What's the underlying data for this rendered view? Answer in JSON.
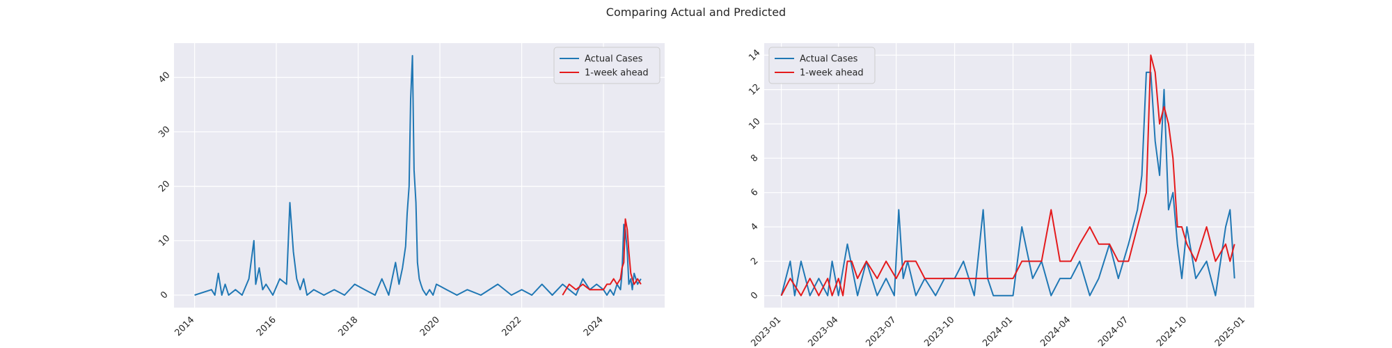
{
  "figure_title": "Comparing Actual and Predicted",
  "colors": {
    "actual": "#1f77b4",
    "predicted": "#e41a1c",
    "plot_bg": "#eaeaf2",
    "grid": "#ffffff",
    "text": "#262626"
  },
  "chart_data": [
    {
      "type": "line",
      "title": "",
      "xlabel": "",
      "ylabel": "",
      "x_kind": "date",
      "xlim": [
        "2013-07-01",
        "2025-07-01"
      ],
      "ylim": [
        -2.3,
        46.3
      ],
      "xticks": [
        "2014-01-01",
        "2016-01-01",
        "2018-01-01",
        "2020-01-01",
        "2022-01-01",
        "2024-01-01"
      ],
      "xtick_labels": [
        "2014",
        "2016",
        "2018",
        "2020",
        "2022",
        "2024"
      ],
      "yticks": [
        0,
        10,
        20,
        30,
        40
      ],
      "ytick_labels": [
        "0",
        "10",
        "20",
        "30",
        "40"
      ],
      "grid": true,
      "legend": {
        "location": "top-right",
        "entries": [
          "Actual Cases",
          "1-week ahead"
        ]
      },
      "series": [
        {
          "name": "Actual Cases",
          "color_key": "actual",
          "x": [
            "2014-01-01",
            "2014-06-01",
            "2014-07-01",
            "2014-08-01",
            "2014-09-01",
            "2014-10-01",
            "2014-11-01",
            "2015-01-01",
            "2015-03-01",
            "2015-05-01",
            "2015-06-15",
            "2015-07-01",
            "2015-08-01",
            "2015-09-01",
            "2015-10-01",
            "2015-12-01",
            "2016-02-01",
            "2016-04-01",
            "2016-05-01",
            "2016-06-01",
            "2016-07-01",
            "2016-08-01",
            "2016-09-01",
            "2016-10-01",
            "2016-12-01",
            "2017-03-01",
            "2017-06-01",
            "2017-09-01",
            "2017-12-01",
            "2018-03-01",
            "2018-06-01",
            "2018-08-01",
            "2018-10-01",
            "2018-12-01",
            "2019-01-01",
            "2019-02-01",
            "2019-03-01",
            "2019-03-15",
            "2019-04-01",
            "2019-04-15",
            "2019-05-01",
            "2019-05-15",
            "2019-06-01",
            "2019-06-15",
            "2019-07-01",
            "2019-07-15",
            "2019-08-01",
            "2019-09-01",
            "2019-10-01",
            "2019-11-01",
            "2019-12-01",
            "2020-03-01",
            "2020-06-01",
            "2020-09-01",
            "2021-01-01",
            "2021-06-01",
            "2021-10-01",
            "2022-01-01",
            "2022-04-01",
            "2022-07-01",
            "2022-10-01",
            "2023-01-01",
            "2023-03-01",
            "2023-05-01",
            "2023-07-01",
            "2023-09-01",
            "2023-11-01",
            "2024-01-01",
            "2024-02-01",
            "2024-03-01",
            "2024-04-01",
            "2024-05-01",
            "2024-06-01",
            "2024-06-15",
            "2024-07-01",
            "2024-07-15",
            "2024-08-01",
            "2024-08-15",
            "2024-09-01",
            "2024-09-15",
            "2024-10-01",
            "2024-11-01",
            "2024-12-01"
          ],
          "y": [
            0,
            1,
            0,
            4,
            0,
            2,
            0,
            1,
            0,
            3,
            10,
            2,
            5,
            1,
            2,
            0,
            3,
            2,
            17,
            8,
            3,
            1,
            3,
            0,
            1,
            0,
            1,
            0,
            2,
            1,
            0,
            3,
            0,
            6,
            2,
            5,
            9,
            15,
            20,
            36,
            44,
            23,
            17,
            6,
            3,
            2,
            1,
            0,
            1,
            0,
            2,
            1,
            0,
            1,
            0,
            2,
            0,
            1,
            0,
            2,
            0,
            2,
            1,
            0,
            3,
            1,
            2,
            1,
            0,
            1,
            0,
            2,
            1,
            4,
            13,
            12,
            8,
            2,
            3,
            1,
            4,
            2,
            3
          ]
        },
        {
          "name": "1-week ahead",
          "color_key": "predicted",
          "x": [
            "2023-01-01",
            "2023-03-01",
            "2023-05-01",
            "2023-07-01",
            "2023-09-01",
            "2023-11-01",
            "2024-01-01",
            "2024-02-01",
            "2024-03-01",
            "2024-04-01",
            "2024-05-01",
            "2024-06-01",
            "2024-06-15",
            "2024-07-01",
            "2024-07-15",
            "2024-08-01",
            "2024-08-15",
            "2024-09-01",
            "2024-09-15",
            "2024-10-01",
            "2024-11-01",
            "2024-12-01"
          ],
          "y": [
            0,
            2,
            1,
            2,
            1,
            1,
            1,
            2,
            2,
            3,
            2,
            3,
            5,
            6,
            14,
            12,
            8,
            4,
            3,
            2,
            3,
            2
          ]
        }
      ]
    },
    {
      "type": "line",
      "title": "",
      "xlabel": "",
      "ylabel": "",
      "x_kind": "date",
      "xlim": [
        "2022-12-05",
        "2025-01-15"
      ],
      "ylim": [
        -0.7,
        14.7
      ],
      "xticks": [
        "2023-01-01",
        "2023-04-01",
        "2023-07-01",
        "2023-10-01",
        "2024-01-01",
        "2024-04-01",
        "2024-07-01",
        "2024-10-01",
        "2025-01-01"
      ],
      "xtick_labels": [
        "2023-01",
        "2023-04",
        "2023-07",
        "2023-10",
        "2024-01",
        "2024-04",
        "2024-07",
        "2024-10",
        "2025-01"
      ],
      "yticks": [
        0,
        2,
        4,
        6,
        8,
        10,
        12,
        14
      ],
      "ytick_labels": [
        "0",
        "2",
        "4",
        "6",
        "8",
        "10",
        "12",
        "14"
      ],
      "grid": true,
      "legend": {
        "location": "top-left",
        "entries": [
          "Actual Cases",
          "1-week ahead"
        ]
      },
      "series": [
        {
          "name": "Actual Cases",
          "color_key": "actual",
          "x": [
            "2023-01-01",
            "2023-01-15",
            "2023-01-22",
            "2023-02-01",
            "2023-02-15",
            "2023-03-01",
            "2023-03-15",
            "2023-03-22",
            "2023-04-01",
            "2023-04-15",
            "2023-05-01",
            "2023-05-15",
            "2023-06-01",
            "2023-06-15",
            "2023-06-28",
            "2023-07-05",
            "2023-07-12",
            "2023-07-19",
            "2023-08-01",
            "2023-08-15",
            "2023-09-01",
            "2023-09-15",
            "2023-10-01",
            "2023-10-15",
            "2023-11-01",
            "2023-11-15",
            "2023-11-22",
            "2023-12-01",
            "2023-12-15",
            "2024-01-01",
            "2024-01-15",
            "2024-02-01",
            "2024-02-15",
            "2024-03-01",
            "2024-03-15",
            "2024-04-01",
            "2024-04-15",
            "2024-05-01",
            "2024-05-15",
            "2024-06-01",
            "2024-06-15",
            "2024-07-01",
            "2024-07-15",
            "2024-07-22",
            "2024-07-29",
            "2024-08-05",
            "2024-08-12",
            "2024-08-19",
            "2024-08-26",
            "2024-09-02",
            "2024-09-09",
            "2024-09-16",
            "2024-09-23",
            "2024-10-01",
            "2024-10-15",
            "2024-11-01",
            "2024-11-15",
            "2024-12-01",
            "2024-12-08",
            "2024-12-15"
          ],
          "y": [
            0,
            2,
            0,
            2,
            0,
            1,
            0,
            2,
            0,
            3,
            0,
            2,
            0,
            1,
            0,
            5,
            1,
            2,
            0,
            1,
            0,
            1,
            1,
            2,
            0,
            5,
            1,
            0,
            0,
            0,
            4,
            1,
            2,
            0,
            1,
            1,
            2,
            0,
            1,
            3,
            1,
            3,
            5,
            7,
            13,
            13,
            9,
            7,
            12,
            5,
            6,
            3,
            1,
            4,
            1,
            2,
            0,
            4,
            5,
            1
          ]
        },
        {
          "name": "1-week ahead",
          "color_key": "predicted",
          "x": [
            "2023-01-01",
            "2023-01-15",
            "2023-02-01",
            "2023-02-15",
            "2023-03-01",
            "2023-03-15",
            "2023-03-22",
            "2023-04-01",
            "2023-04-08",
            "2023-04-15",
            "2023-04-22",
            "2023-05-01",
            "2023-05-15",
            "2023-06-01",
            "2023-06-15",
            "2023-07-01",
            "2023-07-15",
            "2023-08-01",
            "2023-08-15",
            "2023-09-01",
            "2023-10-01",
            "2023-11-01",
            "2023-12-01",
            "2024-01-01",
            "2024-01-15",
            "2024-02-01",
            "2024-02-15",
            "2024-03-01",
            "2024-03-15",
            "2024-04-01",
            "2024-04-15",
            "2024-05-01",
            "2024-05-15",
            "2024-06-01",
            "2024-06-15",
            "2024-07-01",
            "2024-07-15",
            "2024-07-29",
            "2024-08-05",
            "2024-08-12",
            "2024-08-19",
            "2024-08-26",
            "2024-09-02",
            "2024-09-09",
            "2024-09-16",
            "2024-09-23",
            "2024-10-01",
            "2024-10-15",
            "2024-11-01",
            "2024-11-15",
            "2024-12-01",
            "2024-12-08",
            "2024-12-15"
          ],
          "y": [
            0,
            1,
            0,
            1,
            0,
            1,
            0,
            1,
            0,
            2,
            2,
            1,
            2,
            1,
            2,
            1,
            2,
            2,
            1,
            1,
            1,
            1,
            1,
            1,
            2,
            2,
            2,
            5,
            2,
            2,
            3,
            4,
            3,
            3,
            2,
            2,
            4,
            6,
            14,
            13,
            10,
            11,
            10,
            8,
            4,
            4,
            3,
            2,
            4,
            2,
            3,
            2,
            3
          ]
        }
      ]
    }
  ]
}
